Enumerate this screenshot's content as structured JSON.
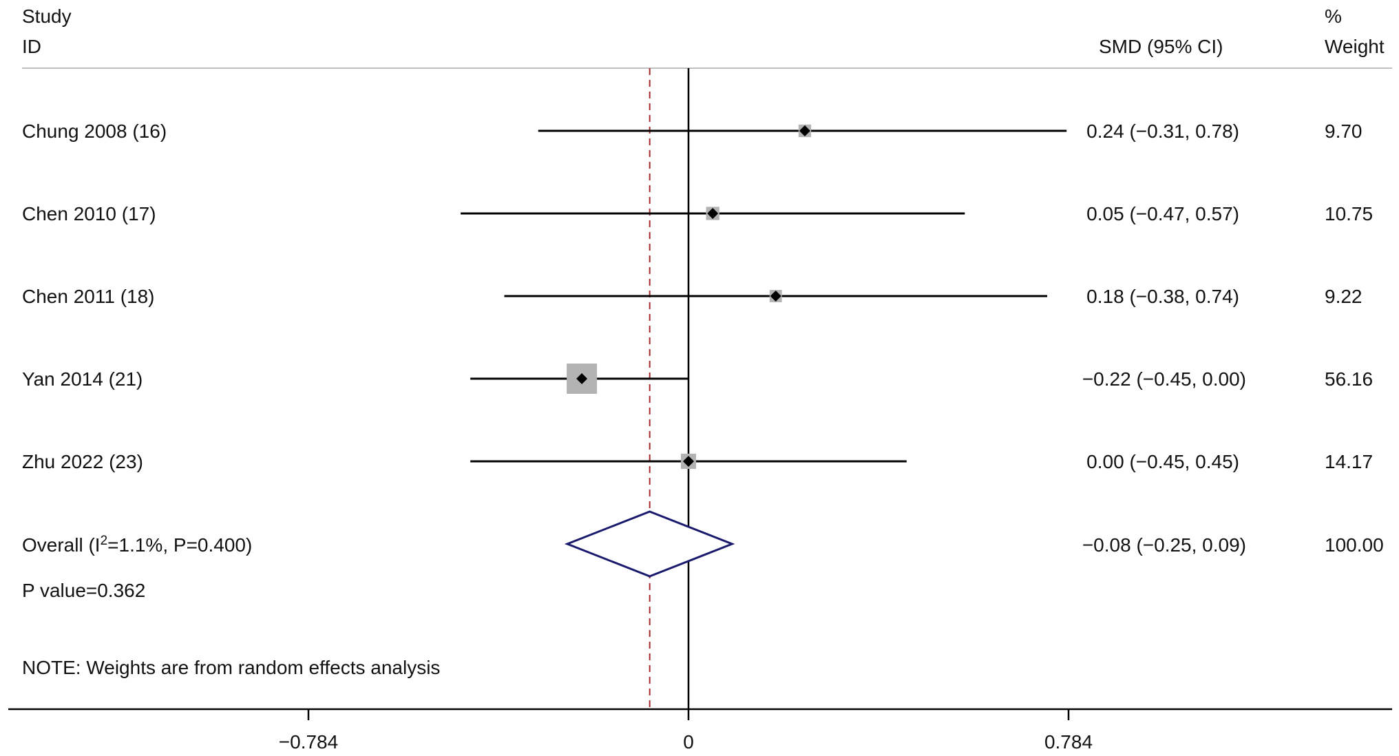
{
  "chart_data": {
    "type": "forest",
    "header": {
      "study_col": [
        "Study",
        "ID"
      ],
      "effect_col": "SMD (95% CI)",
      "weight_col": [
        "%",
        "Weight"
      ]
    },
    "studies": [
      {
        "label": "Chung 2008 (16)",
        "smd": 0.24,
        "lo": -0.31,
        "hi": 0.78,
        "ci_text": "0.24 (−0.31, 0.78)",
        "weight": 9.7,
        "weight_text": "9.70"
      },
      {
        "label": "Chen 2010 (17)",
        "smd": 0.05,
        "lo": -0.47,
        "hi": 0.57,
        "ci_text": "0.05 (−0.47, 0.57)",
        "weight": 10.75,
        "weight_text": "10.75"
      },
      {
        "label": "Chen 2011 (18)",
        "smd": 0.18,
        "lo": -0.38,
        "hi": 0.74,
        "ci_text": "0.18 (−0.38, 0.74)",
        "weight": 9.22,
        "weight_text": "9.22"
      },
      {
        "label": "Yan 2014 (21)",
        "smd": -0.22,
        "lo": -0.45,
        "hi": 0.0,
        "ci_text": "−0.22 (−0.45, 0.00)",
        "weight": 56.16,
        "weight_text": "56.16"
      },
      {
        "label": "Zhu 2022 (23)",
        "smd": 0.0,
        "lo": -0.45,
        "hi": 0.45,
        "ci_text": "0.00 (−0.45, 0.45)",
        "weight": 14.17,
        "weight_text": "14.17"
      }
    ],
    "overall": {
      "label_prefix": "Overall (I",
      "label_sup": "2",
      "label_suffix": "=1.1%, P=0.400)",
      "smd": -0.08,
      "lo": -0.25,
      "hi": 0.09,
      "ci_text": "−0.08 (−0.25, 0.09)",
      "weight_text": "100.00"
    },
    "p_value_text": "P value=0.362",
    "note": "NOTE: Weights are from random effects analysis",
    "x_axis": {
      "ticks": [
        -0.784,
        0,
        0.784
      ],
      "tick_labels": [
        "−0.784",
        "0",
        "0.784"
      ],
      "null_line": 0,
      "pooled_line": -0.08
    },
    "colors": {
      "ci_line": "#000000",
      "weight_box": "#b3b3b3",
      "point": "#000000",
      "diamond": "#1a1a6e",
      "pooled_line": "#a8282d",
      "axis": "#000000",
      "rule": "#bfbfbf"
    }
  }
}
